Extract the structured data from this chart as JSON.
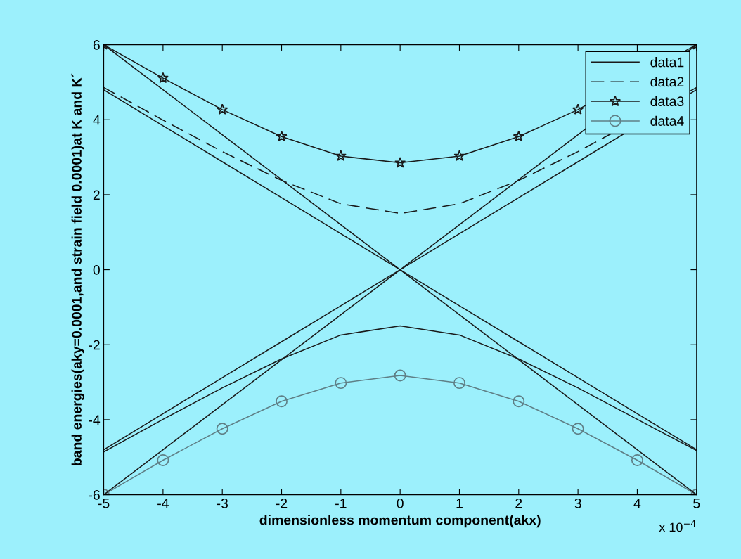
{
  "chart_data": {
    "type": "line",
    "xlabel": "dimensionless momentum component(akx)",
    "ylabel": "band energies(aky=0.0001,and strain field 0.0001)at K and K´",
    "x": [
      -5,
      -4,
      -3,
      -2,
      -1,
      0,
      1,
      2,
      3,
      4,
      5
    ],
    "xlim": [
      -5,
      5
    ],
    "xticks": [
      -5,
      -4,
      -3,
      -2,
      -1,
      0,
      1,
      2,
      3,
      4,
      5
    ],
    "ylim": [
      -6,
      6
    ],
    "yticks": [
      -6,
      -4,
      -2,
      0,
      2,
      4,
      6
    ],
    "grid": false,
    "legend": "top right",
    "annotations": [
      "x 10$^{−4}$"
    ],
    "series": [
      {
        "name": "data1",
        "color": "#1a1a1a",
        "line_style": "solid",
        "marker": "none",
        "values": [
          -4.86,
          -3.99,
          -3.15,
          -2.38,
          -1.74,
          -1.5,
          -1.74,
          -2.38,
          -3.15,
          -3.99,
          -4.82
        ]
      },
      {
        "name": "data2",
        "color": "#1a1a1a",
        "line_style": "dashed",
        "marker": "none",
        "x": [
          -5,
          -4,
          -3,
          -2,
          -1,
          0,
          1,
          2,
          3,
          5
        ],
        "values": [
          4.86,
          3.99,
          3.15,
          2.38,
          1.76,
          1.5,
          1.76,
          2.38,
          3.15,
          4.86
        ]
      },
      {
        "name": "data3",
        "color": "#1a1a1a",
        "line_style": "solid",
        "marker": "star",
        "x": [
          -5,
          -4,
          -3,
          -2,
          -1,
          0,
          1,
          2,
          3,
          5
        ],
        "values": [
          6,
          5.11,
          4.27,
          3.55,
          3.03,
          2.85,
          3.03,
          3.55,
          4.27,
          6
        ]
      },
      {
        "name": "data4",
        "color": "#5f7f86",
        "line_style": "solid",
        "marker": "circle",
        "values": [
          -6,
          -5.08,
          -4.24,
          -3.51,
          -3.02,
          -2.82,
          -3.02,
          -3.51,
          -4.24,
          -5.08,
          -6
        ]
      },
      {
        "color": "#1a1a1a",
        "line_style": "solid",
        "marker": "none",
        "values": [
          6,
          4.8,
          3.6,
          2.4,
          1.2,
          0,
          -1.2,
          -2.4,
          -3.6,
          -4.8,
          -6
        ]
      },
      {
        "color": "#1a1a1a",
        "line_style": "solid",
        "marker": "none",
        "x": [
          -5,
          -4,
          -3,
          -2,
          -1,
          0,
          1,
          2,
          3,
          5
        ],
        "values": [
          -6,
          -4.8,
          -3.6,
          -2.4,
          -1.2,
          0,
          1.2,
          2.4,
          3.6,
          6
        ]
      },
      {
        "color": "#1a1a1a",
        "line_style": "solid",
        "marker": "none",
        "values": [
          4.8,
          3.84,
          2.88,
          1.92,
          0.96,
          0,
          -0.96,
          -1.92,
          -2.88,
          -3.84,
          -4.8
        ]
      },
      {
        "color": "#1a1a1a",
        "line_style": "solid",
        "marker": "none",
        "x": [
          -5,
          -4,
          -3,
          -2,
          -1,
          0,
          1,
          2,
          3,
          5
        ],
        "values": [
          -4.8,
          -3.84,
          -2.88,
          -1.92,
          -0.96,
          0,
          0.96,
          1.92,
          2.88,
          4.8
        ]
      }
    ]
  }
}
